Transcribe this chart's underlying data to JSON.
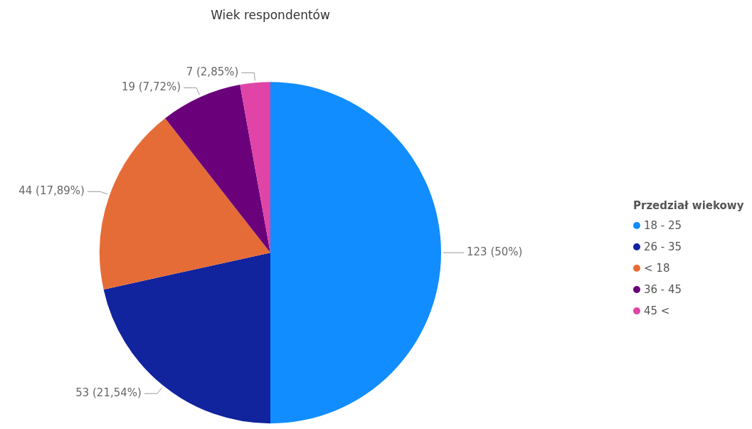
{
  "chart_data": {
    "type": "pie",
    "title": "Wiek respondentów",
    "legend_title": "Przedział wiekowy",
    "legend": "right",
    "categories": [
      "18 - 25",
      "26 - 35",
      "< 18",
      "36 - 45",
      "45 <"
    ],
    "values": [
      123,
      53,
      44,
      19,
      7
    ],
    "colors": [
      "#118dff",
      "#12239e",
      "#e66c37",
      "#6b007b",
      "#e044a7"
    ],
    "value_labels": [
      "123 (50%)",
      "53 (21,54%)",
      "44 (17,89%)",
      "19 (7,72%)",
      "7 (2,85%)"
    ]
  }
}
